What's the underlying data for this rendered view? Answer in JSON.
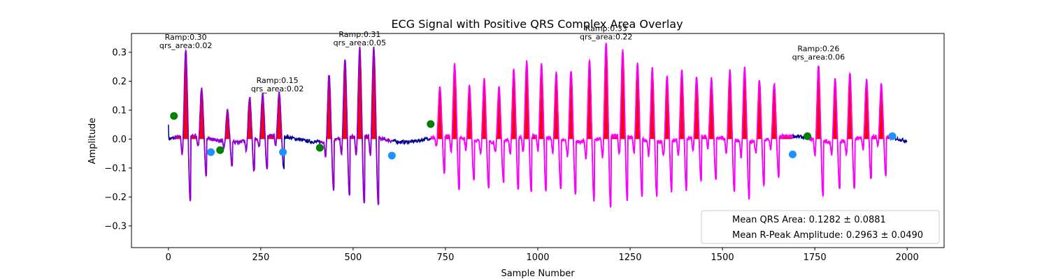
{
  "chart_data": {
    "type": "line",
    "title": "ECG Signal with Positive QRS Complex Area Overlay",
    "xlabel": "Sample Number",
    "ylabel": "Amplitude",
    "xlim": [
      -100,
      2100
    ],
    "ylim": [
      -0.375,
      0.365
    ],
    "xticks": [
      0,
      250,
      500,
      750,
      1000,
      1250,
      1500,
      1750,
      2000
    ],
    "yticks": [
      -0.3,
      -0.2,
      -0.1,
      0.0,
      0.1,
      0.2,
      0.3
    ],
    "grid": false,
    "colors": {
      "ecg": "#00008b",
      "segment_a": "#9400d3",
      "segment_b": "#ff00ff",
      "qrs_fill": "#ff0000",
      "onset_marker": "#008000",
      "offset_marker": "#1e90ff"
    },
    "ecg_samples_per_segment": 2000,
    "segments": [
      {
        "start": 15,
        "end": 310,
        "color_key": "segment_a",
        "onset": {
          "x": 15,
          "y": 0.08
        },
        "offset": {
          "x": 310,
          "y": -0.045
        },
        "extra_markers": [
          {
            "x": 115,
            "y": -0.045,
            "kind": "offset"
          },
          {
            "x": 140,
            "y": -0.038,
            "kind": "onset"
          }
        ],
        "r_peaks": [
          {
            "x": 47,
            "y": 0.3
          },
          {
            "x": 90,
            "y": 0.17
          },
          {
            "x": 160,
            "y": 0.11
          },
          {
            "x": 220,
            "y": 0.15
          },
          {
            "x": 255,
            "y": 0.15
          },
          {
            "x": 300,
            "y": 0.15
          }
        ],
        "annotations": [
          {
            "x": 47,
            "y": 0.3,
            "text": "Ramp:0.30\nqrs_area:0.02"
          },
          {
            "x": 295,
            "y": 0.15,
            "text": "Ramp:0.15\nqrs_area:0.02"
          }
        ]
      },
      {
        "start": 410,
        "end": 605,
        "color_key": "segment_a",
        "onset": {
          "x": 410,
          "y": -0.03
        },
        "offset": {
          "x": 605,
          "y": -0.057
        },
        "extra_markers": [],
        "r_peaks": [
          {
            "x": 435,
            "y": 0.23
          },
          {
            "x": 478,
            "y": 0.27
          },
          {
            "x": 518,
            "y": 0.31
          },
          {
            "x": 556,
            "y": 0.31
          }
        ],
        "annotations": [
          {
            "x": 518,
            "y": 0.31,
            "text": "Ramp:0.31\nqrs_area:0.05"
          }
        ]
      },
      {
        "start": 710,
        "end": 1690,
        "color_key": "segment_b",
        "onset": {
          "x": 710,
          "y": 0.052
        },
        "offset": {
          "x": 1690,
          "y": -0.053
        },
        "extra_markers": [],
        "r_peaks": [
          {
            "x": 735,
            "y": 0.17
          },
          {
            "x": 775,
            "y": 0.25
          },
          {
            "x": 815,
            "y": 0.19
          },
          {
            "x": 855,
            "y": 0.22
          },
          {
            "x": 895,
            "y": 0.19
          },
          {
            "x": 935,
            "y": 0.24
          },
          {
            "x": 970,
            "y": 0.26
          },
          {
            "x": 1010,
            "y": 0.25
          },
          {
            "x": 1050,
            "y": 0.23
          },
          {
            "x": 1090,
            "y": 0.25
          },
          {
            "x": 1140,
            "y": 0.28
          },
          {
            "x": 1185,
            "y": 0.33
          },
          {
            "x": 1230,
            "y": 0.3
          },
          {
            "x": 1270,
            "y": 0.26
          },
          {
            "x": 1310,
            "y": 0.25
          },
          {
            "x": 1350,
            "y": 0.23
          },
          {
            "x": 1390,
            "y": 0.24
          },
          {
            "x": 1430,
            "y": 0.21
          },
          {
            "x": 1470,
            "y": 0.2
          },
          {
            "x": 1520,
            "y": 0.24
          },
          {
            "x": 1560,
            "y": 0.26
          },
          {
            "x": 1600,
            "y": 0.21
          },
          {
            "x": 1640,
            "y": 0.19
          }
        ],
        "annotations": [
          {
            "x": 1185,
            "y": 0.33,
            "text": "Ramp:0.33\nqrs_area:0.22"
          }
        ]
      },
      {
        "start": 1730,
        "end": 1960,
        "color_key": "segment_b",
        "onset": {
          "x": 1730,
          "y": 0.01
        },
        "offset": {
          "x": 1960,
          "y": 0.01
        },
        "extra_markers": [],
        "r_peaks": [
          {
            "x": 1760,
            "y": 0.26
          },
          {
            "x": 1805,
            "y": 0.22
          },
          {
            "x": 1845,
            "y": 0.23
          },
          {
            "x": 1890,
            "y": 0.2
          },
          {
            "x": 1930,
            "y": 0.18
          }
        ],
        "annotations": [
          {
            "x": 1760,
            "y": 0.26,
            "text": "Ramp:0.26\nqrs_area:0.06"
          }
        ]
      }
    ],
    "legend": {
      "placement": "lower right",
      "entries": [
        "Mean QRS Area: 0.1282 ± 0.0881",
        "Mean R-Peak Amplitude: 0.2963 ± 0.0490"
      ]
    }
  }
}
